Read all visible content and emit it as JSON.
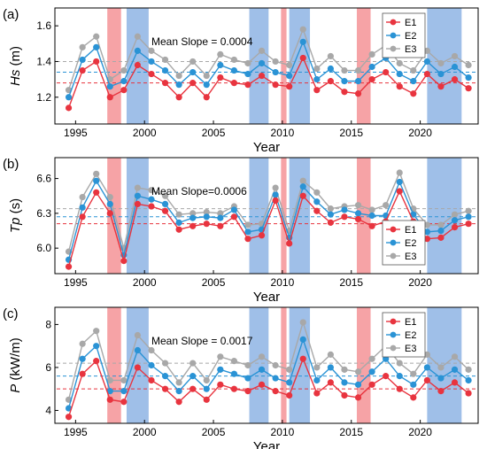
{
  "colors": {
    "E1": "#e8343f",
    "E2": "#2a93d5",
    "E3": "#a8a8a8",
    "red_band": "#f6a3a6",
    "blue_band": "#9fbfe8"
  },
  "chart_data": [
    {
      "type": "line",
      "panel_label": "(a)",
      "ylabel_italic": "Hs",
      "ylabel_unit": " (m)",
      "xlabel": "Year",
      "annotation": "Mean Slope = 0.0004",
      "legend_position": "top-right",
      "xlim": [
        1993.5,
        2024.2
      ],
      "ylim": [
        1.05,
        1.7
      ],
      "yticks": [
        1.2,
        1.4,
        1.6
      ],
      "ytick_labels": [
        "1.2",
        "1.4",
        "1.6"
      ],
      "xticks": [
        1995,
        2000,
        2005,
        2010,
        2015,
        2020
      ],
      "xtick_labels": [
        "1995",
        "2000",
        "2005",
        "2010",
        "2015",
        "2020"
      ],
      "x": [
        1994.5,
        1995.5,
        1996.5,
        1997.5,
        1998.5,
        1999.5,
        2000.5,
        2001.5,
        2002.5,
        2003.5,
        2004.5,
        2005.5,
        2006.5,
        2007.5,
        2008.5,
        2009.5,
        2010.5,
        2011.5,
        2012.5,
        2013.5,
        2014.5,
        2015.5,
        2016.5,
        2017.5,
        2018.5,
        2019.5,
        2020.5,
        2021.5,
        2022.5,
        2023.5
      ],
      "series": [
        {
          "name": "E1",
          "values": [
            1.14,
            1.35,
            1.4,
            1.2,
            1.24,
            1.38,
            1.33,
            1.28,
            1.2,
            1.28,
            1.2,
            1.31,
            1.28,
            1.27,
            1.32,
            1.27,
            1.26,
            1.42,
            1.24,
            1.29,
            1.23,
            1.22,
            1.3,
            1.34,
            1.26,
            1.22,
            1.33,
            1.26,
            1.3,
            1.25
          ],
          "mean": 1.28
        },
        {
          "name": "E2",
          "values": [
            1.2,
            1.41,
            1.48,
            1.26,
            1.29,
            1.46,
            1.4,
            1.35,
            1.27,
            1.34,
            1.27,
            1.38,
            1.35,
            1.33,
            1.39,
            1.34,
            1.32,
            1.51,
            1.3,
            1.36,
            1.29,
            1.29,
            1.37,
            1.42,
            1.33,
            1.29,
            1.4,
            1.33,
            1.37,
            1.31
          ],
          "mean": 1.34
        },
        {
          "name": "E3",
          "values": [
            1.24,
            1.48,
            1.54,
            1.3,
            1.35,
            1.54,
            1.46,
            1.41,
            1.32,
            1.4,
            1.32,
            1.44,
            1.41,
            1.39,
            1.46,
            1.4,
            1.38,
            1.58,
            1.36,
            1.43,
            1.35,
            1.35,
            1.44,
            1.49,
            1.39,
            1.35,
            1.46,
            1.39,
            1.43,
            1.38
          ],
          "mean": 1.4
        }
      ],
      "red_bands": [
        [
          1997.3,
          1998.3
        ],
        [
          2009.9,
          2010.3
        ],
        [
          2015.4,
          2016.4
        ]
      ],
      "blue_bands": [
        [
          1998.7,
          2000.3
        ],
        [
          2007.6,
          2009.0
        ],
        [
          2010.5,
          2012.0
        ],
        [
          2020.5,
          2023.0
        ]
      ],
      "legend": [
        "E1",
        "E2",
        "E3"
      ]
    },
    {
      "type": "line",
      "panel_label": "(b)",
      "ylabel_italic": "Tp",
      "ylabel_unit": " (s)",
      "xlabel": "Year",
      "annotation": "Mean Slope=0.0006",
      "legend_position": "bottom-right",
      "xlim": [
        1993.5,
        2024.2
      ],
      "ylim": [
        5.78,
        6.78
      ],
      "yticks": [
        6.0,
        6.3,
        6.6
      ],
      "ytick_labels": [
        "6.0",
        "6.3",
        "6.6"
      ],
      "xticks": [
        1995,
        2000,
        2005,
        2010,
        2015,
        2020
      ],
      "xtick_labels": [
        "1995",
        "2000",
        "2005",
        "2010",
        "2015",
        "2020"
      ],
      "x": [
        1994.5,
        1995.5,
        1996.5,
        1997.5,
        1998.5,
        1999.5,
        2000.5,
        2001.5,
        2002.5,
        2003.5,
        2004.5,
        2005.5,
        2006.5,
        2007.5,
        2008.5,
        2009.5,
        2010.5,
        2011.5,
        2012.5,
        2013.5,
        2014.5,
        2015.5,
        2016.5,
        2017.5,
        2018.5,
        2019.5,
        2020.5,
        2021.5,
        2022.5,
        2023.5
      ],
      "series": [
        {
          "name": "E1",
          "values": [
            5.84,
            6.27,
            6.48,
            6.3,
            5.89,
            6.38,
            6.36,
            6.32,
            6.16,
            6.19,
            6.21,
            6.19,
            6.27,
            6.08,
            6.11,
            6.41,
            6.04,
            6.45,
            6.32,
            6.22,
            6.27,
            6.25,
            6.19,
            6.23,
            6.49,
            6.23,
            6.08,
            6.09,
            6.18,
            6.21
          ],
          "mean": 6.21
        },
        {
          "name": "E2",
          "values": [
            5.9,
            6.35,
            6.58,
            6.38,
            5.94,
            6.45,
            6.42,
            6.38,
            6.22,
            6.26,
            6.27,
            6.26,
            6.33,
            6.14,
            6.16,
            6.46,
            6.09,
            6.53,
            6.4,
            6.29,
            6.33,
            6.3,
            6.28,
            6.28,
            6.57,
            6.29,
            6.14,
            6.15,
            6.24,
            6.27
          ],
          "mean": 6.27
        },
        {
          "name": "E3",
          "values": [
            5.97,
            6.44,
            6.64,
            6.44,
            6.0,
            6.52,
            6.5,
            6.45,
            6.29,
            6.3,
            6.31,
            6.3,
            6.36,
            6.2,
            6.21,
            6.52,
            6.15,
            6.58,
            6.48,
            6.34,
            6.36,
            6.37,
            6.33,
            6.37,
            6.65,
            6.34,
            6.2,
            6.2,
            6.29,
            6.32
          ],
          "mean": 6.34
        }
      ],
      "red_bands": [
        [
          1997.3,
          1998.3
        ],
        [
          2009.9,
          2010.3
        ],
        [
          2015.4,
          2016.4
        ]
      ],
      "blue_bands": [
        [
          1998.7,
          2000.3
        ],
        [
          2007.6,
          2009.0
        ],
        [
          2010.5,
          2012.0
        ],
        [
          2020.5,
          2023.0
        ]
      ],
      "legend": [
        "E1",
        "E2",
        "E3"
      ]
    },
    {
      "type": "line",
      "panel_label": "(c)",
      "ylabel_italic": "P",
      "ylabel_unit": " (kW/m)",
      "xlabel": "Year",
      "annotation": "Mean Slope = 0.0017",
      "legend_position": "top-right",
      "xlim": [
        1993.5,
        2024.2
      ],
      "ylim": [
        3.4,
        8.8
      ],
      "yticks": [
        4,
        6,
        8
      ],
      "ytick_labels": [
        "4",
        "6",
        "8"
      ],
      "xticks": [
        1995,
        2000,
        2005,
        2010,
        2015,
        2020
      ],
      "xtick_labels": [
        "1995",
        "2000",
        "2005",
        "2010",
        "2015",
        "2020"
      ],
      "x": [
        1994.5,
        1995.5,
        1996.5,
        1997.5,
        1998.5,
        1999.5,
        2000.5,
        2001.5,
        2002.5,
        2003.5,
        2004.5,
        2005.5,
        2006.5,
        2007.5,
        2008.5,
        2009.5,
        2010.5,
        2011.5,
        2012.5,
        2013.5,
        2014.5,
        2015.5,
        2016.5,
        2017.5,
        2018.5,
        2019.5,
        2020.5,
        2021.5,
        2022.5,
        2023.5
      ],
      "series": [
        {
          "name": "E1",
          "values": [
            3.7,
            5.7,
            6.3,
            4.5,
            4.4,
            6.0,
            5.4,
            5.0,
            4.4,
            5.0,
            4.5,
            5.2,
            5.0,
            4.9,
            5.2,
            4.9,
            4.7,
            6.4,
            4.8,
            5.3,
            4.7,
            4.6,
            5.2,
            5.6,
            5.0,
            4.6,
            5.4,
            4.9,
            5.3,
            4.8
          ],
          "mean": 5.0
        },
        {
          "name": "E2",
          "values": [
            4.1,
            6.4,
            7.0,
            4.9,
            4.9,
            6.8,
            6.1,
            5.6,
            4.9,
            5.6,
            5.0,
            5.9,
            5.7,
            5.5,
            5.9,
            5.5,
            5.3,
            7.3,
            5.4,
            6.0,
            5.3,
            5.2,
            5.8,
            6.4,
            5.6,
            5.2,
            6.0,
            5.5,
            5.9,
            5.4
          ],
          "mean": 5.6
        },
        {
          "name": "E3",
          "values": [
            4.5,
            7.1,
            7.7,
            5.4,
            5.4,
            7.5,
            6.8,
            6.2,
            5.3,
            6.2,
            5.4,
            6.5,
            6.3,
            6.1,
            6.5,
            6.1,
            5.9,
            8.1,
            6.0,
            6.6,
            5.9,
            5.8,
            6.4,
            7.0,
            6.2,
            5.7,
            6.6,
            6.0,
            6.5,
            5.9
          ],
          "mean": 6.2
        }
      ],
      "red_bands": [
        [
          1997.3,
          1998.3
        ],
        [
          2009.9,
          2010.3
        ],
        [
          2015.4,
          2016.4
        ]
      ],
      "blue_bands": [
        [
          1998.7,
          2000.3
        ],
        [
          2007.6,
          2009.0
        ],
        [
          2010.5,
          2012.0
        ],
        [
          2020.5,
          2023.0
        ]
      ],
      "legend": [
        "E1",
        "E2",
        "E3"
      ]
    }
  ]
}
